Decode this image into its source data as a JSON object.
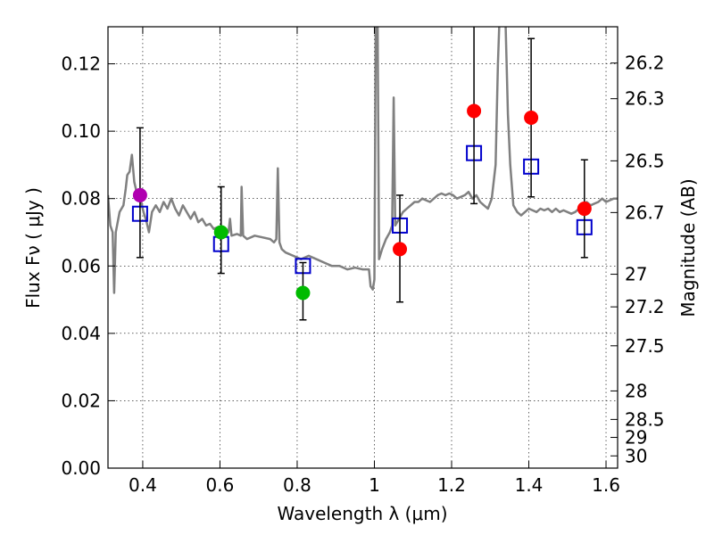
{
  "chart_data": {
    "type": "scatter",
    "xlabel": "Wavelength  λ (μm)",
    "ylabel": "Flux  Fν  ( μJy )",
    "ylabel_right": "Magnitude (AB)",
    "xlim": [
      0.31,
      1.63
    ],
    "ylim": [
      0.0,
      0.131
    ],
    "x_ticks": [
      0.4,
      0.6,
      0.8,
      1.0,
      1.2,
      1.4,
      1.6
    ],
    "x_tick_labels": [
      "0.4",
      "0.6",
      "0.8",
      "1",
      "1.2",
      "1.4",
      "1.6"
    ],
    "y_ticks": [
      0.0,
      0.02,
      0.04,
      0.06,
      0.08,
      0.1,
      0.12
    ],
    "y_tick_labels": [
      "0.00",
      "0.02",
      "0.04",
      "0.06",
      "0.08",
      "0.10",
      "0.12"
    ],
    "mag_ticks": [
      26.2,
      26.3,
      26.5,
      26.7,
      27,
      27.2,
      27.5,
      28,
      28.5,
      29,
      30
    ],
    "mag_tick_labels": [
      "26.2",
      "26.3",
      "26.5",
      "26.7",
      "27",
      "27.2",
      "27.5",
      "28",
      "28.5",
      "29",
      "30"
    ],
    "grid": true,
    "colors": {
      "template": "#808080",
      "model": "#0000cc",
      "errorbar": "#000000"
    },
    "observed_points": [
      {
        "x": 0.393,
        "y": 0.081,
        "yerr_low": 0.0625,
        "yerr_high": 0.101,
        "color": "#b000b0"
      },
      {
        "x": 0.603,
        "y": 0.07,
        "yerr_low": 0.0578,
        "yerr_high": 0.0835,
        "color": "#00bb00"
      },
      {
        "x": 0.815,
        "y": 0.052,
        "yerr_low": 0.044,
        "yerr_high": 0.061,
        "color": "#00bb00"
      },
      {
        "x": 1.066,
        "y": 0.065,
        "yerr_low": 0.0493,
        "yerr_high": 0.081,
        "color": "#ff0000"
      },
      {
        "x": 1.258,
        "y": 0.106,
        "yerr_low": 0.0785,
        "yerr_high": 0.133,
        "color": "#ff0000"
      },
      {
        "x": 1.406,
        "y": 0.104,
        "yerr_low": 0.0805,
        "yerr_high": 0.1275,
        "color": "#ff0000"
      },
      {
        "x": 1.544,
        "y": 0.077,
        "yerr_low": 0.0625,
        "yerr_high": 0.0915,
        "color": "#ff0000"
      }
    ],
    "model_points": [
      {
        "x": 0.393,
        "y": 0.0755
      },
      {
        "x": 0.603,
        "y": 0.0665
      },
      {
        "x": 0.815,
        "y": 0.06
      },
      {
        "x": 1.066,
        "y": 0.072
      },
      {
        "x": 1.258,
        "y": 0.0935
      },
      {
        "x": 1.406,
        "y": 0.0895
      },
      {
        "x": 1.544,
        "y": 0.0715
      }
    ],
    "template_spectrum": [
      [
        0.31,
        0.081
      ],
      [
        0.316,
        0.072
      ],
      [
        0.322,
        0.07
      ],
      [
        0.326,
        0.052
      ],
      [
        0.33,
        0.07
      ],
      [
        0.34,
        0.076
      ],
      [
        0.35,
        0.078
      ],
      [
        0.356,
        0.083
      ],
      [
        0.36,
        0.087
      ],
      [
        0.366,
        0.088
      ],
      [
        0.372,
        0.093
      ],
      [
        0.378,
        0.085
      ],
      [
        0.384,
        0.082
      ],
      [
        0.39,
        0.08
      ],
      [
        0.396,
        0.079
      ],
      [
        0.402,
        0.076
      ],
      [
        0.41,
        0.073
      ],
      [
        0.416,
        0.07
      ],
      [
        0.424,
        0.076
      ],
      [
        0.434,
        0.078
      ],
      [
        0.444,
        0.076
      ],
      [
        0.454,
        0.079
      ],
      [
        0.464,
        0.077
      ],
      [
        0.474,
        0.08
      ],
      [
        0.484,
        0.077
      ],
      [
        0.494,
        0.075
      ],
      [
        0.504,
        0.078
      ],
      [
        0.514,
        0.076
      ],
      [
        0.524,
        0.074
      ],
      [
        0.534,
        0.076
      ],
      [
        0.544,
        0.073
      ],
      [
        0.554,
        0.074
      ],
      [
        0.564,
        0.072
      ],
      [
        0.574,
        0.0725
      ],
      [
        0.584,
        0.071
      ],
      [
        0.594,
        0.0715
      ],
      [
        0.604,
        0.07
      ],
      [
        0.614,
        0.0705
      ],
      [
        0.622,
        0.07
      ],
      [
        0.626,
        0.074
      ],
      [
        0.63,
        0.069
      ],
      [
        0.644,
        0.0695
      ],
      [
        0.654,
        0.069
      ],
      [
        0.656,
        0.0835
      ],
      [
        0.66,
        0.069
      ],
      [
        0.67,
        0.068
      ],
      [
        0.69,
        0.069
      ],
      [
        0.71,
        0.0685
      ],
      [
        0.73,
        0.068
      ],
      [
        0.74,
        0.067
      ],
      [
        0.746,
        0.068
      ],
      [
        0.75,
        0.089
      ],
      [
        0.754,
        0.067
      ],
      [
        0.76,
        0.065
      ],
      [
        0.77,
        0.064
      ],
      [
        0.79,
        0.063
      ],
      [
        0.81,
        0.062
      ],
      [
        0.83,
        0.063
      ],
      [
        0.85,
        0.062
      ],
      [
        0.87,
        0.061
      ],
      [
        0.89,
        0.06
      ],
      [
        0.91,
        0.06
      ],
      [
        0.93,
        0.059
      ],
      [
        0.95,
        0.0595
      ],
      [
        0.97,
        0.059
      ],
      [
        0.986,
        0.059
      ],
      [
        0.99,
        0.054
      ],
      [
        0.996,
        0.053
      ],
      [
        1.0,
        0.056
      ],
      [
        1.004,
        0.14
      ],
      [
        1.008,
        0.14
      ],
      [
        1.012,
        0.062
      ],
      [
        1.02,
        0.065
      ],
      [
        1.03,
        0.068
      ],
      [
        1.04,
        0.07
      ],
      [
        1.046,
        0.072
      ],
      [
        1.05,
        0.11
      ],
      [
        1.054,
        0.072
      ],
      [
        1.064,
        0.074
      ],
      [
        1.074,
        0.076
      ],
      [
        1.084,
        0.077
      ],
      [
        1.094,
        0.078
      ],
      [
        1.104,
        0.079
      ],
      [
        1.114,
        0.079
      ],
      [
        1.124,
        0.08
      ],
      [
        1.134,
        0.0795
      ],
      [
        1.144,
        0.079
      ],
      [
        1.154,
        0.08
      ],
      [
        1.164,
        0.081
      ],
      [
        1.174,
        0.0815
      ],
      [
        1.184,
        0.081
      ],
      [
        1.194,
        0.0815
      ],
      [
        1.204,
        0.081
      ],
      [
        1.214,
        0.08
      ],
      [
        1.224,
        0.0805
      ],
      [
        1.234,
        0.081
      ],
      [
        1.244,
        0.082
      ],
      [
        1.254,
        0.08
      ],
      [
        1.264,
        0.081
      ],
      [
        1.274,
        0.079
      ],
      [
        1.284,
        0.078
      ],
      [
        1.294,
        0.077
      ],
      [
        1.304,
        0.08
      ],
      [
        1.314,
        0.09
      ],
      [
        1.32,
        0.12
      ],
      [
        1.326,
        0.14
      ],
      [
        1.338,
        0.14
      ],
      [
        1.346,
        0.105
      ],
      [
        1.352,
        0.09
      ],
      [
        1.36,
        0.078
      ],
      [
        1.37,
        0.076
      ],
      [
        1.38,
        0.075
      ],
      [
        1.39,
        0.076
      ],
      [
        1.4,
        0.077
      ],
      [
        1.41,
        0.0765
      ],
      [
        1.42,
        0.076
      ],
      [
        1.43,
        0.077
      ],
      [
        1.44,
        0.0765
      ],
      [
        1.45,
        0.077
      ],
      [
        1.46,
        0.076
      ],
      [
        1.47,
        0.077
      ],
      [
        1.48,
        0.076
      ],
      [
        1.49,
        0.0765
      ],
      [
        1.5,
        0.076
      ],
      [
        1.51,
        0.0755
      ],
      [
        1.52,
        0.076
      ],
      [
        1.53,
        0.077
      ],
      [
        1.54,
        0.078
      ],
      [
        1.55,
        0.079
      ],
      [
        1.56,
        0.078
      ],
      [
        1.57,
        0.0785
      ],
      [
        1.58,
        0.079
      ],
      [
        1.59,
        0.08
      ],
      [
        1.6,
        0.079
      ],
      [
        1.61,
        0.0795
      ],
      [
        1.62,
        0.08
      ],
      [
        1.63,
        0.08
      ]
    ]
  }
}
